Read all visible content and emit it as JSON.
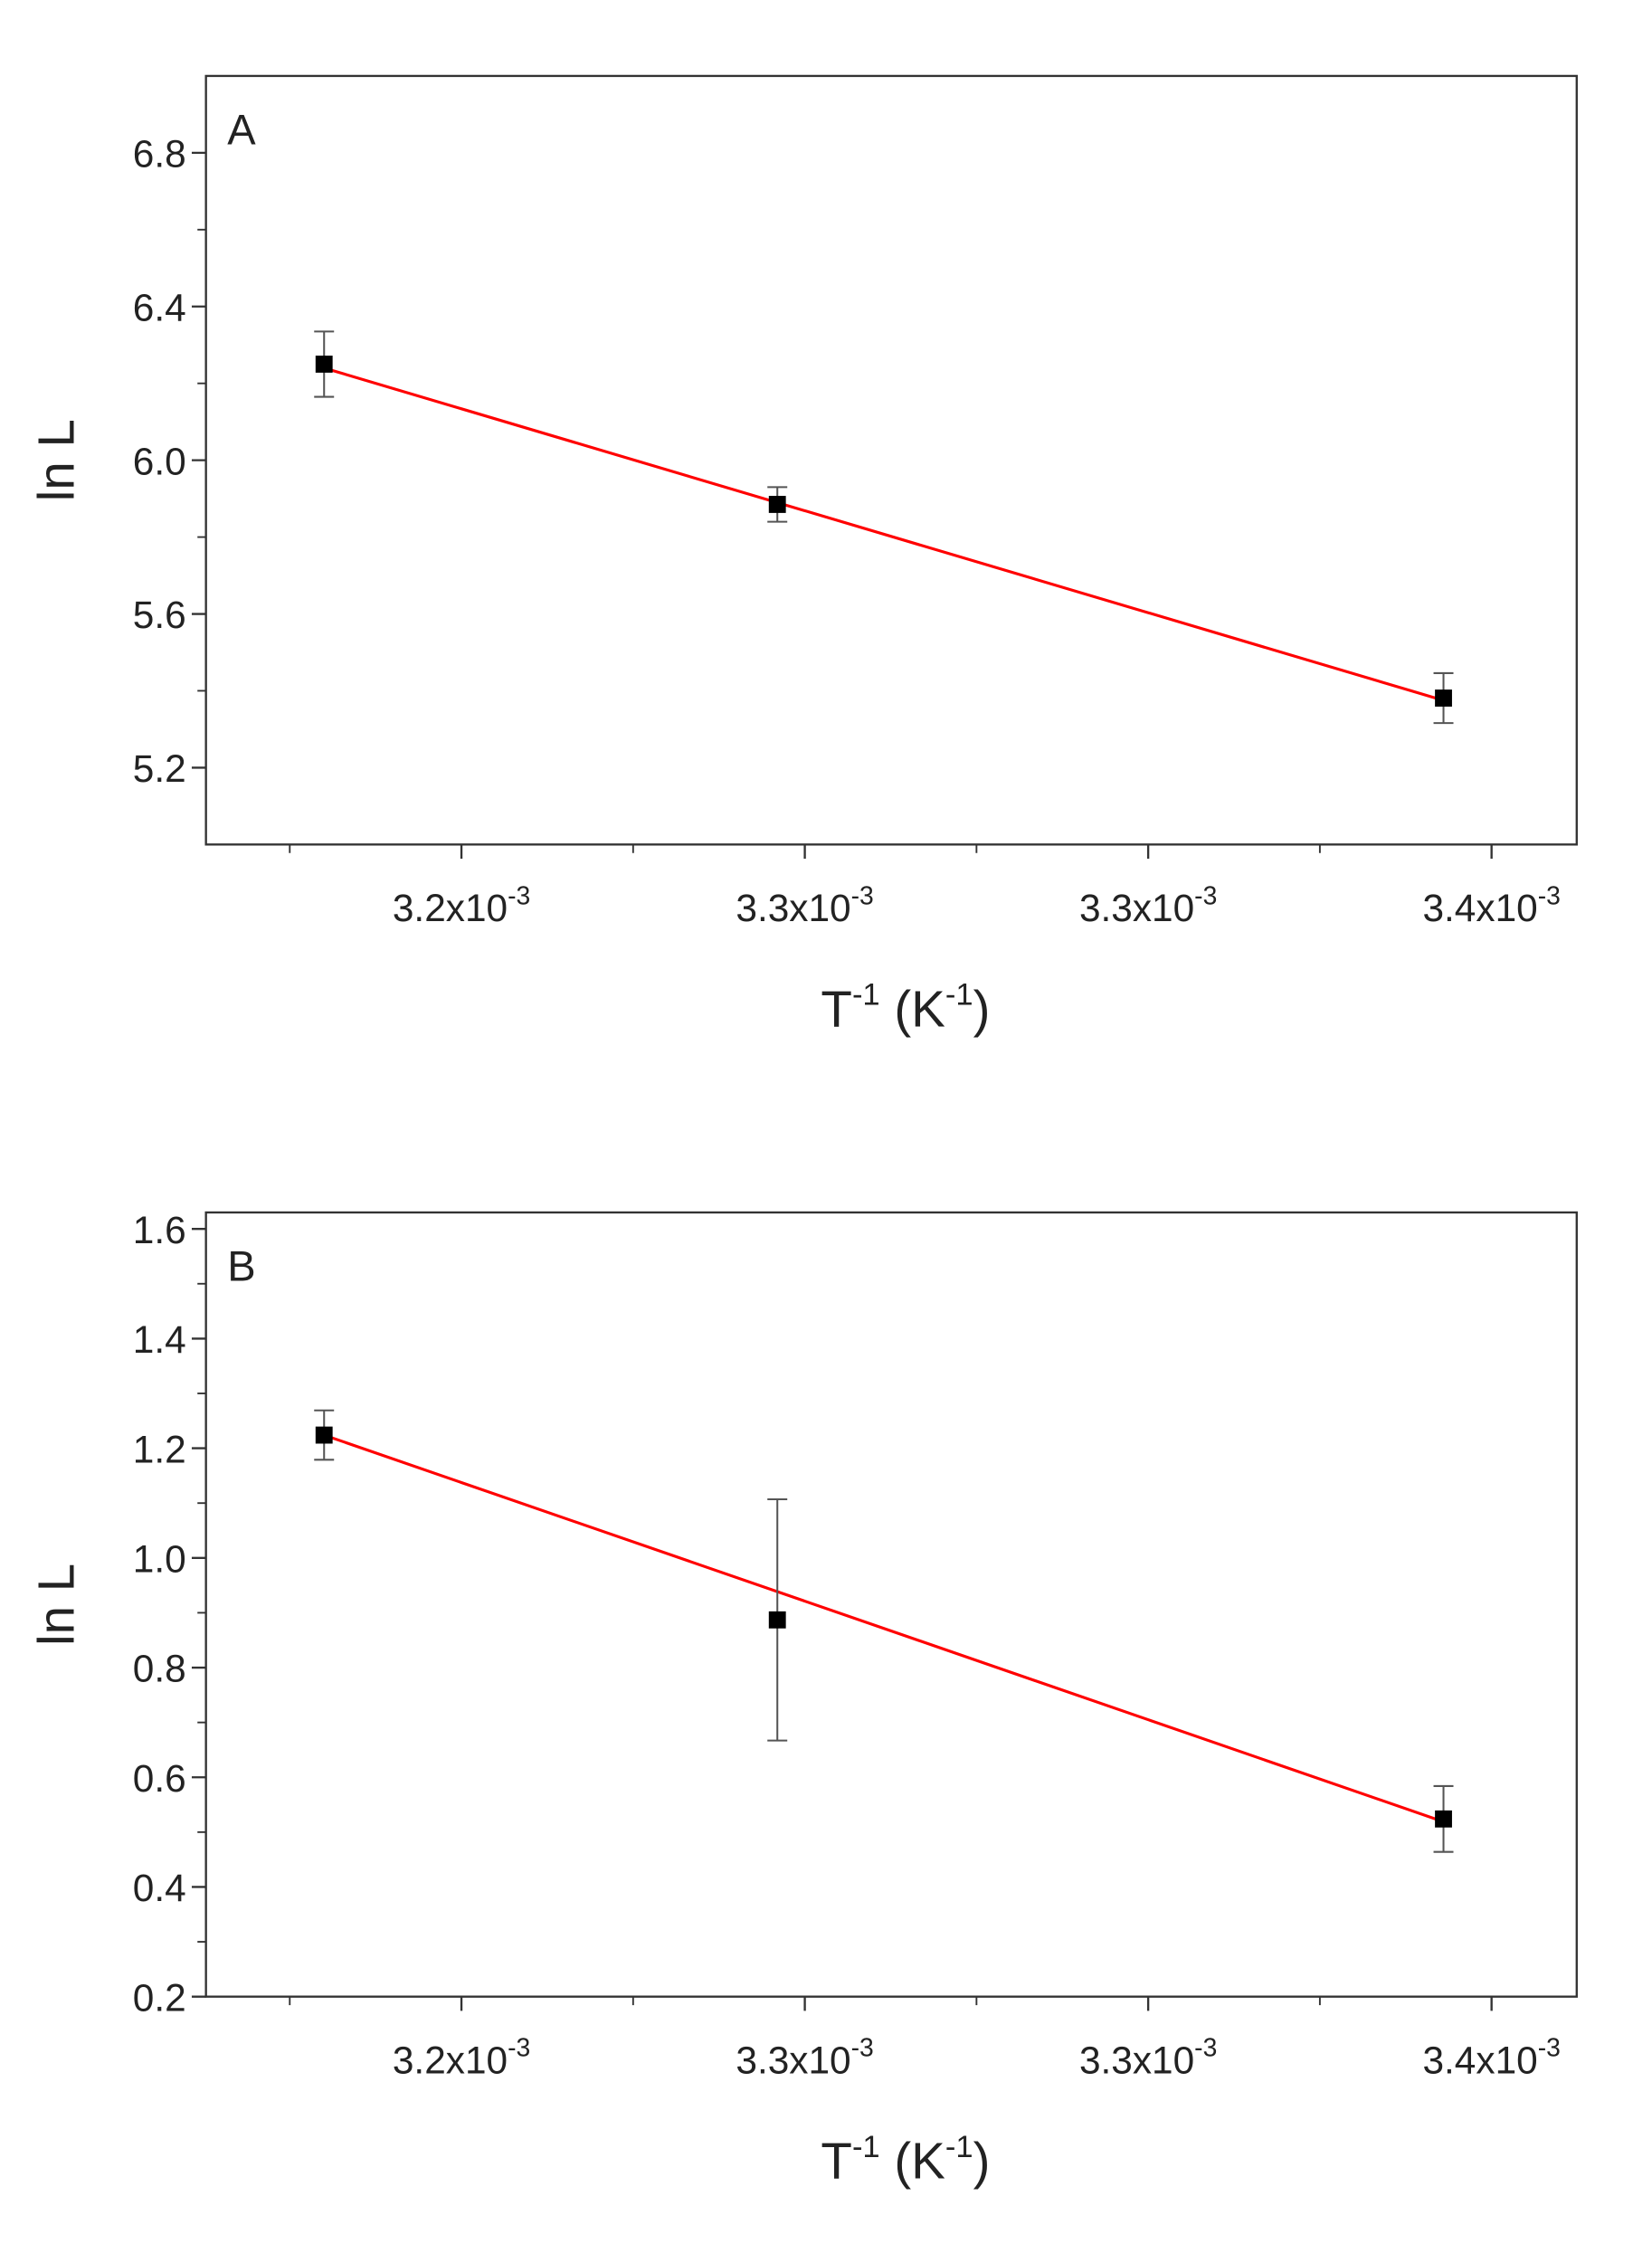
{
  "chart_data": [
    {
      "type": "scatter",
      "panel_label": "A",
      "y_label": "ln L",
      "x_label": [
        "T",
        "-1",
        " (K",
        "-1",
        ")"
      ],
      "x": [
        0.00318,
        0.003246,
        0.003343
      ],
      "values": [
        6.25,
        5.885,
        5.381
      ],
      "errors": [
        0.085,
        0.045,
        0.065
      ],
      "color": "#000000",
      "fit": {
        "x": [
          0.00318,
          0.003343
        ],
        "values": [
          6.24,
          5.375
        ],
        "color": "#ff0000"
      },
      "xlim": [
        0.0031628,
        0.0033624
      ],
      "xticks": [
        {
          "value": 0.0032,
          "label": "3.2x10",
          "label_sup": "-3"
        },
        {
          "value": 0.00325,
          "label": "3.3x10",
          "label_sup": "-3"
        },
        {
          "value": 0.0033,
          "label": "3.3x10",
          "label_sup": "-3"
        },
        {
          "value": 0.00335,
          "label": "3.4x10",
          "label_sup": "-3"
        }
      ],
      "xminorticks": [
        0.003175,
        0.003225,
        0.003275,
        0.003325
      ],
      "ylim": [
        5.0,
        7.0
      ],
      "yticks": [
        5.2,
        5.6,
        {
          "value": 6,
          "label": "6.0"
        },
        6.4,
        6.8
      ],
      "yminorticks": [
        5.4,
        5.8,
        6.2,
        6.6
      ]
    },
    {
      "type": "scatter",
      "panel_label": "B",
      "y_label": "ln L",
      "x_label": [
        "T",
        "-1",
        " (K",
        "-1",
        ")"
      ],
      "x": [
        0.00318,
        0.003246,
        0.003343
      ],
      "values": [
        1.224,
        0.887,
        0.524
      ],
      "errors": [
        0.045,
        0.22,
        0.06
      ],
      "color": "#000000",
      "fit": {
        "x": [
          0.00318,
          0.003343
        ],
        "values": [
          1.224,
          0.519
        ],
        "color": "#ff0000"
      },
      "xlim": [
        0.0031628,
        0.0033624
      ],
      "xticks": [
        {
          "value": 0.0032,
          "label": "3.2x10",
          "label_sup": "-3"
        },
        {
          "value": 0.00325,
          "label": "3.3x10",
          "label_sup": "-3"
        },
        {
          "value": 0.0033,
          "label": "3.3x10",
          "label_sup": "-3"
        },
        {
          "value": 0.00335,
          "label": "3.4x10",
          "label_sup": "-3"
        }
      ],
      "xminorticks": [
        0.003175,
        0.003225,
        0.003275,
        0.003325
      ],
      "ylim": [
        0.2,
        1.63
      ],
      "yticks": [
        0.2,
        0.4,
        0.6,
        0.8,
        {
          "value": 1,
          "label": "1.0"
        },
        1.2,
        1.4,
        1.6
      ],
      "yminorticks": [
        0.3,
        0.5,
        0.7,
        0.9,
        1.1,
        1.3,
        1.5
      ]
    }
  ]
}
